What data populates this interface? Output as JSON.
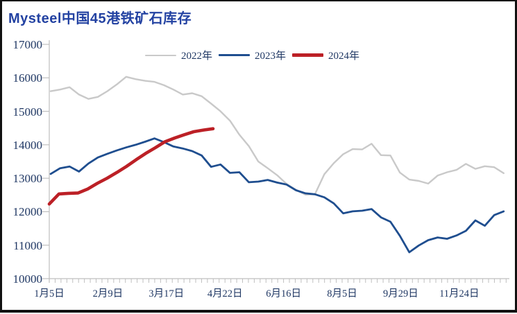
{
  "title": "Mysteel中国45港铁矿石库存",
  "colors": {
    "background": "#FFFFFF",
    "frame": "#111111",
    "title": "#2342A2",
    "axis_text": "#203864",
    "axis_line": "#BFBFBF"
  },
  "chart_data": {
    "type": "line",
    "title": "Mysteel中国45港铁矿石库存",
    "legend_position": "top-center",
    "grid": false,
    "y_axis": {
      "min": 10000,
      "max": 17000,
      "step": 1000,
      "tick_labels": [
        "10000",
        "11000",
        "12000",
        "13000",
        "14000",
        "15000",
        "16000",
        "17000"
      ]
    },
    "x_axis": {
      "tick_labels": [
        "1月5日",
        "2月9日",
        "3月17日",
        "4月22日",
        "6月16日",
        "8月5日",
        "9月29日",
        "11月24日"
      ]
    },
    "series": [
      {
        "name": "2022年",
        "color": "#C9C9C9",
        "width": 2.4,
        "x_start": 0.024,
        "x_end": 7.758,
        "values": [
          15600,
          15650,
          15720,
          15500,
          15370,
          15430,
          15600,
          15800,
          16030,
          15960,
          15910,
          15880,
          15780,
          15650,
          15500,
          15540,
          15450,
          15230,
          15000,
          14720,
          14300,
          13960,
          13500,
          13300,
          13090,
          12830,
          12650,
          12510,
          12520,
          13120,
          13450,
          13720,
          13870,
          13860,
          14030,
          13690,
          13680,
          13170,
          12960,
          12920,
          12840,
          13080,
          13180,
          13250,
          13430,
          13280,
          13360,
          13330,
          13150
        ]
      },
      {
        "name": "2023年",
        "color": "#1F4E8F",
        "width": 2.8,
        "x_start": 0.024,
        "x_end": 7.758,
        "values": [
          13130,
          13300,
          13350,
          13200,
          13440,
          13620,
          13730,
          13830,
          13920,
          14000,
          14090,
          14190,
          14080,
          13950,
          13890,
          13810,
          13680,
          13340,
          13410,
          13160,
          13180,
          12880,
          12900,
          12950,
          12870,
          12810,
          12640,
          12550,
          12520,
          12430,
          12250,
          11950,
          12010,
          12030,
          12080,
          11830,
          11700,
          11280,
          10790,
          10990,
          11150,
          11230,
          11190,
          11290,
          11430,
          11740,
          11580,
          11900,
          12010
        ]
      },
      {
        "name": "2024年",
        "color": "#BC2026",
        "width": 4.6,
        "x_start": 0.0,
        "x_end": 2.796,
        "values": [
          12230,
          12530,
          12550,
          12560,
          12680,
          12850,
          13000,
          13170,
          13350,
          13550,
          13740,
          13910,
          14090,
          14200,
          14300,
          14390,
          14440,
          14480
        ]
      }
    ]
  }
}
